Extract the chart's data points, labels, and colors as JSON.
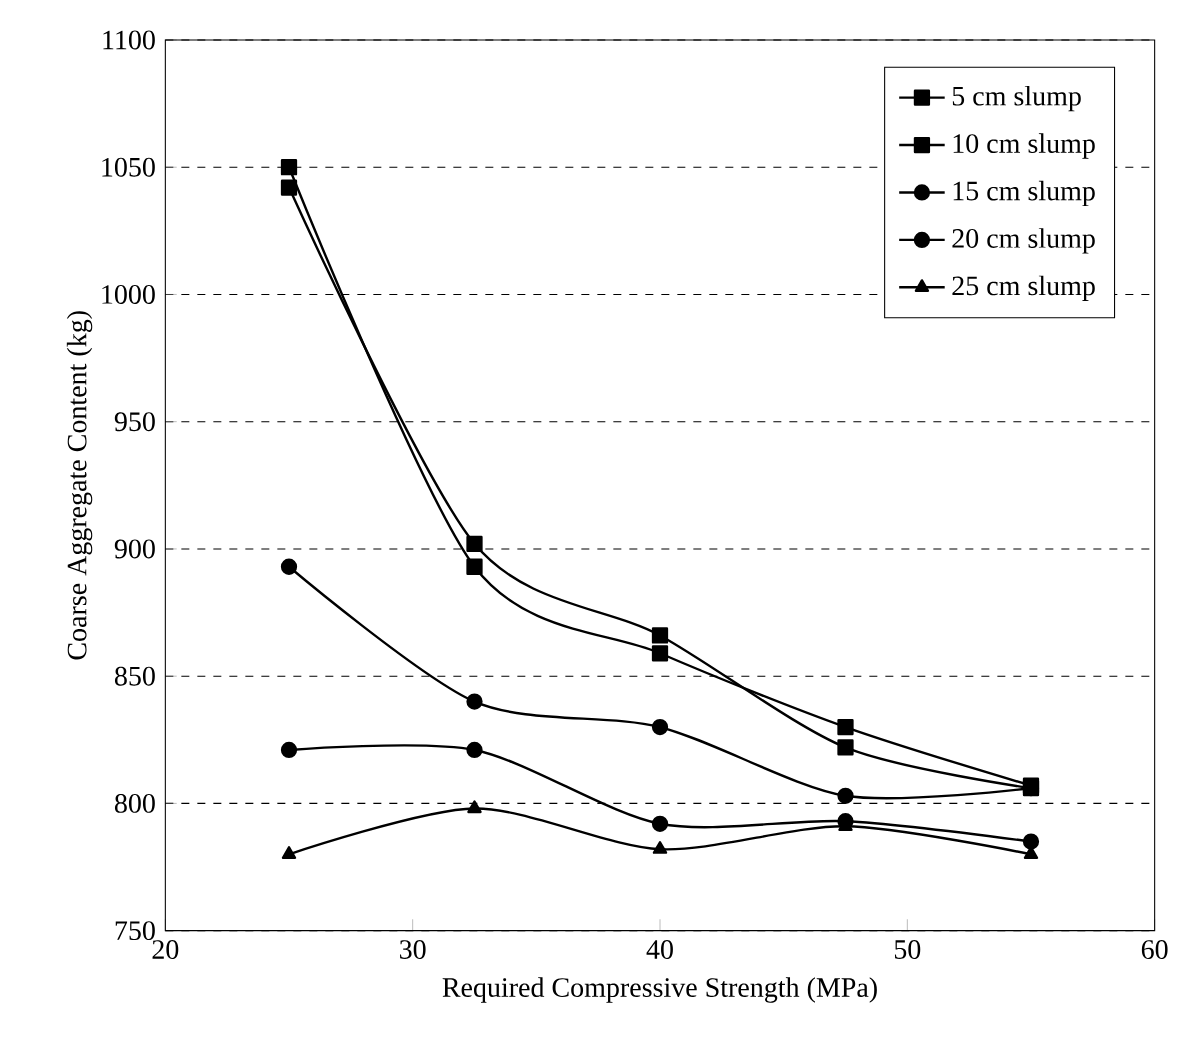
{
  "chart_data": {
    "type": "line",
    "xlabel": "Required Compressive Strength (MPa)",
    "ylabel": "Coarse Aggregate Content (kg)",
    "x": [
      25,
      32.5,
      40,
      47.5,
      55
    ],
    "series": [
      {
        "name": "5 cm slump",
        "color": "#000000",
        "marker": "square",
        "values": [
          1050,
          893,
          859,
          830,
          807
        ]
      },
      {
        "name": "10 cm slump",
        "color": "#000000",
        "marker": "square",
        "values": [
          1042,
          902,
          866,
          822,
          806
        ]
      },
      {
        "name": "15 cm slump",
        "color": "#000000",
        "marker": "circle",
        "values": [
          893,
          840,
          830,
          803,
          806
        ]
      },
      {
        "name": "20 cm slump",
        "color": "#000000",
        "marker": "circle",
        "values": [
          821,
          821,
          792,
          793,
          785
        ]
      },
      {
        "name": "25 cm slump",
        "color": "#000000",
        "marker": "triangle",
        "values": [
          780,
          798,
          782,
          791,
          780
        ]
      }
    ],
    "xlim": [
      20,
      60
    ],
    "xticks": [
      20,
      30,
      40,
      50,
      60
    ],
    "ylim": [
      750,
      1100
    ],
    "yticks": [
      750,
      800,
      850,
      900,
      950,
      1000,
      1050,
      1100
    ],
    "grid": "y",
    "legend": "top right",
    "line_style": "solid"
  }
}
